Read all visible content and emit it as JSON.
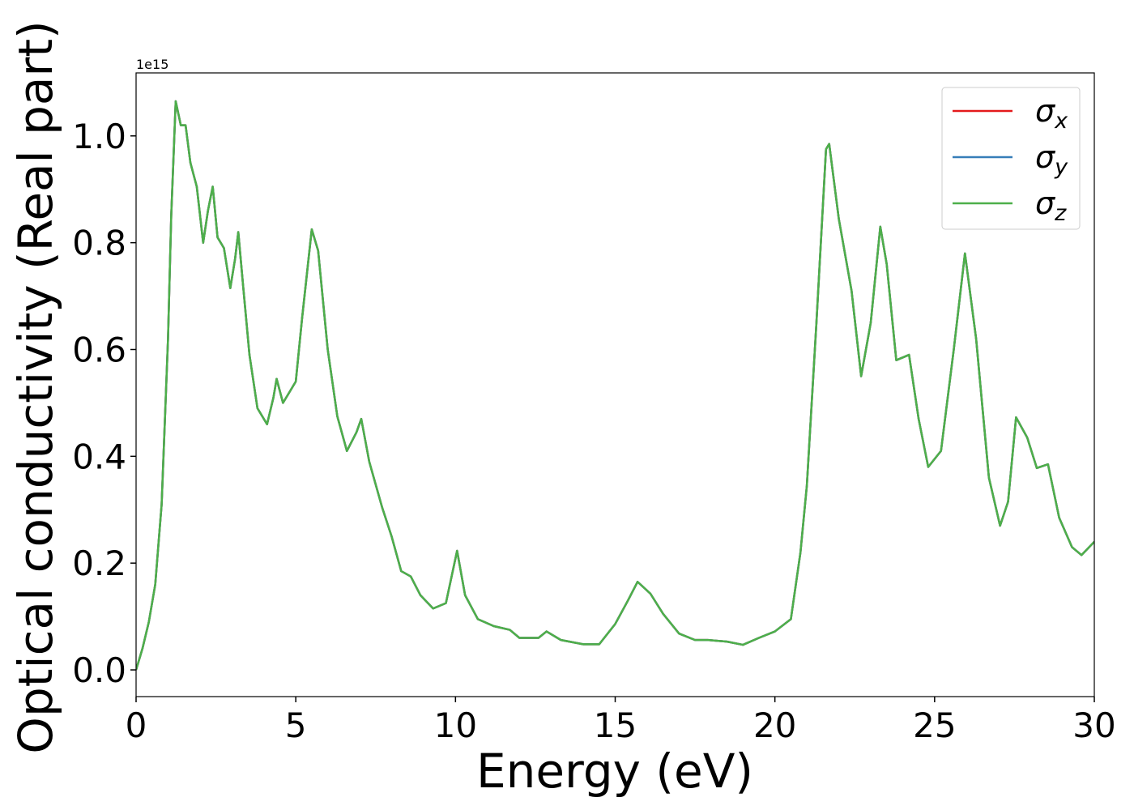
{
  "chart_data": {
    "type": "line",
    "xlabel": "Energy (eV)",
    "ylabel": "Optical conductivity (Real part)",
    "y_offset_text": "1e15",
    "x": [
      0,
      0.2,
      0.4,
      0.6,
      0.8,
      1.0,
      1.1,
      1.24,
      1.4,
      1.55,
      1.7,
      1.9,
      2.1,
      2.25,
      2.4,
      2.55,
      2.75,
      2.95,
      3.1,
      3.2,
      3.35,
      3.55,
      3.8,
      4.1,
      4.3,
      4.4,
      4.6,
      4.8,
      5.0,
      5.2,
      5.5,
      5.7,
      6.0,
      6.3,
      6.6,
      6.9,
      7.05,
      7.3,
      7.7,
      8.0,
      8.3,
      8.6,
      8.9,
      9.3,
      9.7,
      10.05,
      10.3,
      10.7,
      11.2,
      11.7,
      12.0,
      12.6,
      12.85,
      13.3,
      14.0,
      14.5,
      15.0,
      15.4,
      15.7,
      16.1,
      16.5,
      17.0,
      17.5,
      17.9,
      18.5,
      19.0,
      19.5,
      20.0,
      20.5,
      20.8,
      21.0,
      21.3,
      21.6,
      21.7,
      22.0,
      22.4,
      22.7,
      23.0,
      23.3,
      23.5,
      23.8,
      24.2,
      24.5,
      24.8,
      25.2,
      25.6,
      25.95,
      26.3,
      26.7,
      27.05,
      27.3,
      27.55,
      27.9,
      28.2,
      28.55,
      28.9,
      29.3,
      29.6,
      30.0
    ],
    "series": [
      {
        "name": "σx",
        "color": "#e41a1c",
        "values": [
          0,
          0.04,
          0.09,
          0.16,
          0.31,
          0.62,
          0.85,
          1.065,
          1.02,
          1.02,
          0.95,
          0.905,
          0.8,
          0.86,
          0.905,
          0.81,
          0.79,
          0.715,
          0.77,
          0.82,
          0.72,
          0.59,
          0.49,
          0.46,
          0.51,
          0.545,
          0.5,
          0.52,
          0.54,
          0.66,
          0.825,
          0.785,
          0.6,
          0.475,
          0.41,
          0.445,
          0.47,
          0.39,
          0.305,
          0.25,
          0.185,
          0.175,
          0.14,
          0.115,
          0.125,
          0.223,
          0.14,
          0.095,
          0.082,
          0.075,
          0.06,
          0.06,
          0.072,
          0.056,
          0.048,
          0.048,
          0.086,
          0.13,
          0.165,
          0.143,
          0.105,
          0.068,
          0.056,
          0.056,
          0.053,
          0.047,
          0.06,
          0.072,
          0.095,
          0.22,
          0.345,
          0.65,
          0.975,
          0.985,
          0.845,
          0.71,
          0.55,
          0.65,
          0.83,
          0.76,
          0.58,
          0.59,
          0.47,
          0.38,
          0.41,
          0.6,
          0.78,
          0.62,
          0.36,
          0.27,
          0.315,
          0.473,
          0.435,
          0.378,
          0.385,
          0.285,
          0.23,
          0.215,
          0.24
        ]
      },
      {
        "name": "σy",
        "color": "#377eb8",
        "values": [
          0,
          0.04,
          0.09,
          0.16,
          0.31,
          0.62,
          0.85,
          1.065,
          1.02,
          1.02,
          0.95,
          0.905,
          0.8,
          0.86,
          0.905,
          0.81,
          0.79,
          0.715,
          0.77,
          0.82,
          0.72,
          0.59,
          0.49,
          0.46,
          0.51,
          0.545,
          0.5,
          0.52,
          0.54,
          0.66,
          0.825,
          0.785,
          0.6,
          0.475,
          0.41,
          0.445,
          0.47,
          0.39,
          0.305,
          0.25,
          0.185,
          0.175,
          0.14,
          0.115,
          0.125,
          0.223,
          0.14,
          0.095,
          0.082,
          0.075,
          0.06,
          0.06,
          0.072,
          0.056,
          0.048,
          0.048,
          0.086,
          0.13,
          0.165,
          0.143,
          0.105,
          0.068,
          0.056,
          0.056,
          0.053,
          0.047,
          0.06,
          0.072,
          0.095,
          0.22,
          0.345,
          0.65,
          0.975,
          0.985,
          0.845,
          0.71,
          0.55,
          0.65,
          0.83,
          0.76,
          0.58,
          0.59,
          0.47,
          0.38,
          0.41,
          0.6,
          0.78,
          0.62,
          0.36,
          0.27,
          0.315,
          0.473,
          0.435,
          0.378,
          0.385,
          0.285,
          0.23,
          0.215,
          0.24
        ]
      },
      {
        "name": "σz",
        "color": "#4daf4a",
        "values": [
          0,
          0.04,
          0.09,
          0.16,
          0.31,
          0.62,
          0.85,
          1.065,
          1.02,
          1.02,
          0.95,
          0.905,
          0.8,
          0.86,
          0.905,
          0.81,
          0.79,
          0.715,
          0.77,
          0.82,
          0.72,
          0.59,
          0.49,
          0.46,
          0.51,
          0.545,
          0.5,
          0.52,
          0.54,
          0.66,
          0.825,
          0.785,
          0.6,
          0.475,
          0.41,
          0.445,
          0.47,
          0.39,
          0.305,
          0.25,
          0.185,
          0.175,
          0.14,
          0.115,
          0.125,
          0.223,
          0.14,
          0.095,
          0.082,
          0.075,
          0.06,
          0.06,
          0.072,
          0.056,
          0.048,
          0.048,
          0.086,
          0.13,
          0.165,
          0.143,
          0.105,
          0.068,
          0.056,
          0.056,
          0.053,
          0.047,
          0.06,
          0.072,
          0.095,
          0.22,
          0.345,
          0.65,
          0.975,
          0.985,
          0.845,
          0.71,
          0.55,
          0.65,
          0.83,
          0.76,
          0.58,
          0.59,
          0.47,
          0.38,
          0.41,
          0.6,
          0.78,
          0.62,
          0.36,
          0.27,
          0.315,
          0.473,
          0.435,
          0.378,
          0.385,
          0.285,
          0.23,
          0.215,
          0.24
        ]
      }
    ],
    "xlim": [
      0,
      30
    ],
    "xticks": [
      0,
      5,
      10,
      15,
      20,
      25,
      30
    ],
    "ylim": [
      -0.05,
      1.118
    ],
    "yticks": [
      {
        "value": 0,
        "label": "0.0"
      },
      {
        "value": 0.2,
        "label": "0.2"
      },
      {
        "value": 0.4,
        "label": "0.4"
      },
      {
        "value": 0.6,
        "label": "0.6"
      },
      {
        "value": 0.8,
        "label": "0.8"
      },
      {
        "value": 1.0,
        "label": "1.0"
      }
    ],
    "grid": false,
    "legend": "upper right"
  }
}
